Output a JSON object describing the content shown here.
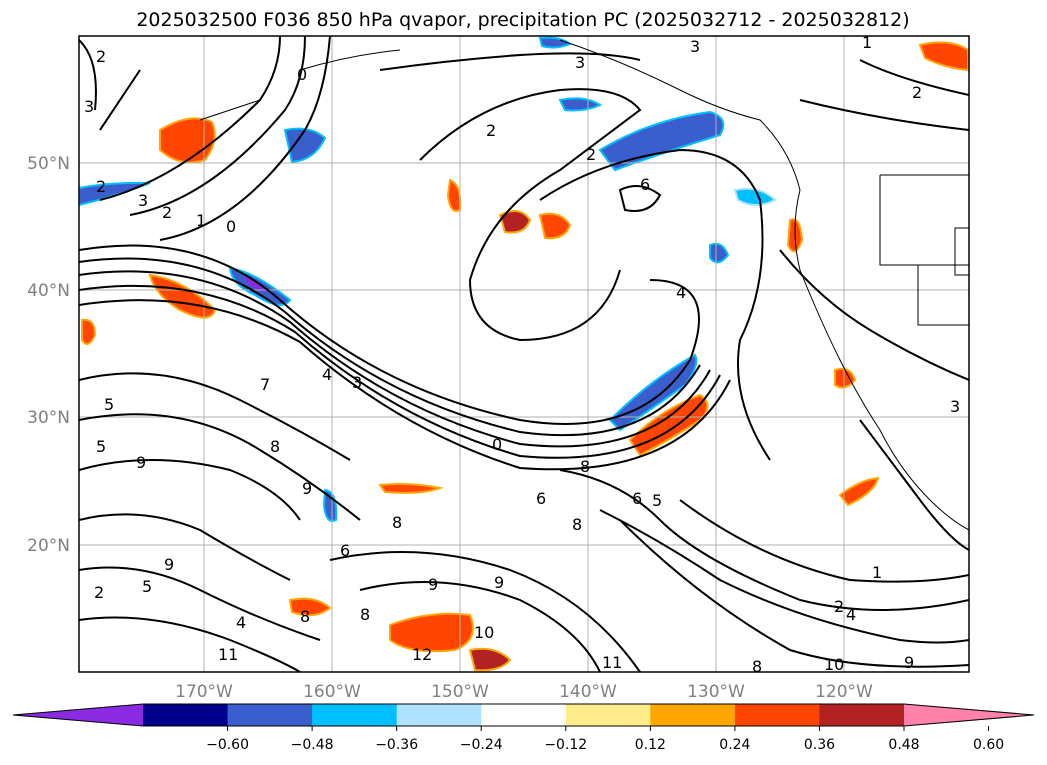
{
  "title": "2025032500 F036 850 hPa qvapor, precipitation PC (2025032712 - 2025032812)",
  "map": {
    "lat_labels": [
      "50°N",
      "40°N",
      "30°N",
      "20°N"
    ],
    "lon_labels": [
      "170°W",
      "160°W",
      "150°W",
      "140°W",
      "130°W",
      "120°W"
    ],
    "grid": true,
    "contour_color": "#000000"
  },
  "contour_labels": [
    "2",
    "3",
    "0",
    "3",
    "2",
    "1",
    "2",
    "3",
    "2",
    "6",
    "2",
    "1",
    "0",
    "2",
    "3",
    "4",
    "7",
    "5",
    "4",
    "3",
    "0",
    "8",
    "9",
    "8",
    "5",
    "9",
    "6",
    "8",
    "6",
    "5",
    "8",
    "9",
    "6",
    "8",
    "9",
    "5",
    "2",
    "4",
    "8",
    "12",
    "10",
    "11",
    "10",
    "8",
    "9",
    "1",
    "2",
    "4",
    "9",
    "11",
    "3"
  ],
  "colorbar": {
    "extend": "both",
    "colors": [
      "#8a2be2",
      "#00008b",
      "#3a5fcd",
      "#00bfff",
      "#b0e2ff",
      "#ffffff",
      "#ffec8b",
      "#ffa500",
      "#ff4500",
      "#b22222",
      "#ff82ab"
    ],
    "tick_labels": [
      "−0.60",
      "−0.48",
      "−0.36",
      "−0.24",
      "−0.12",
      "0.12",
      "0.24",
      "0.36",
      "0.48",
      "0.60"
    ]
  }
}
